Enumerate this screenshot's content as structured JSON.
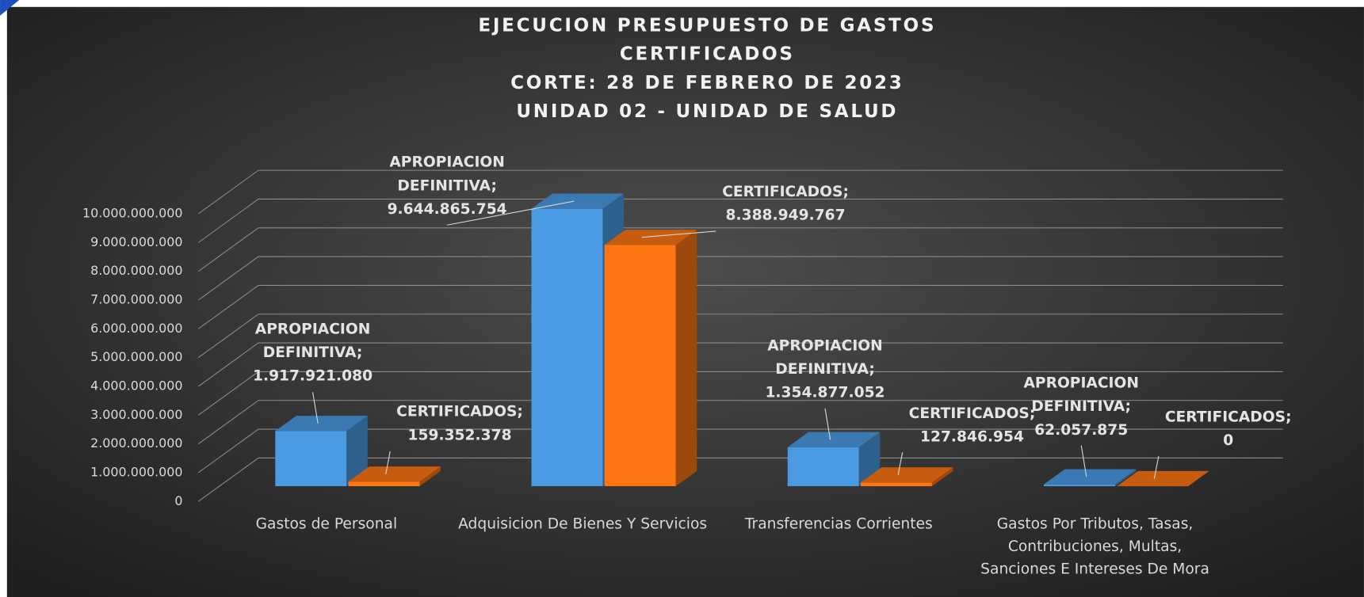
{
  "chart_data": {
    "type": "bar3d",
    "title": [
      "EJECUCION PRESUPUESTO DE GASTOS",
      "CERTIFICADOS",
      "CORTE: 28 DE FEBRERO DE 2023",
      "UNIDAD 02 - UNIDAD DE SALUD"
    ],
    "categories": [
      "Gastos de Personal",
      "Adquisicion De Bienes Y Servicios",
      "Transferencias Corrientes",
      "Gastos Por Tributos, Tasas, Contribuciones, Multas, Sanciones E Intereses De Mora"
    ],
    "label_separator": ";",
    "series": [
      {
        "name": "APROPIACION DEFINITIVA",
        "color": "#4a9be3",
        "values": [
          1917921080,
          9644865754,
          1354877052,
          62057875
        ],
        "value_labels": [
          "1.917.921.080",
          "9.644.865.754",
          "1.354.877.052",
          "62.057.875"
        ]
      },
      {
        "name": "CERTIFICADOS",
        "color": "#ff7613",
        "values": [
          159352378,
          8388949767,
          127846954,
          0
        ],
        "value_labels": [
          "159.352.378",
          "8.388.949.767",
          "127.846.954",
          "0"
        ]
      }
    ],
    "ylim": [
      0,
      10000000000
    ],
    "yticks": [
      0,
      {
        "value": 1000000000,
        "label": "1.000.000.000"
      },
      {
        "value": 2000000000,
        "label": "2.000.000.000"
      },
      {
        "value": 3000000000,
        "label": "3.000.000.000"
      },
      {
        "value": 4000000000,
        "label": "4.000.000.000"
      },
      {
        "value": 5000000000,
        "label": "5.000.000.000"
      },
      {
        "value": 6000000000,
        "label": "6.000.000.000"
      },
      {
        "value": 7000000000,
        "label": "7.000.000.000"
      },
      {
        "value": 8000000000,
        "label": "8.000.000.000"
      },
      {
        "value": 9000000000,
        "label": "9.000.000.000"
      },
      {
        "value": 10000000000,
        "label": "10.000.000.000"
      }
    ],
    "grid": true
  }
}
